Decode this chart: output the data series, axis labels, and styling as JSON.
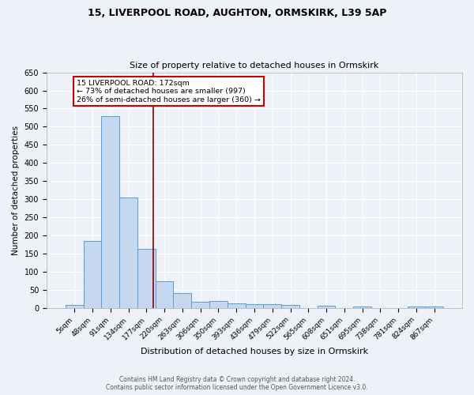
{
  "title1": "15, LIVERPOOL ROAD, AUGHTON, ORMSKIRK, L39 5AP",
  "title2": "Size of property relative to detached houses in Ormskirk",
  "xlabel": "Distribution of detached houses by size in Ormskirk",
  "ylabel": "Number of detached properties",
  "categories": [
    "5sqm",
    "48sqm",
    "91sqm",
    "134sqm",
    "177sqm",
    "220sqm",
    "263sqm",
    "306sqm",
    "350sqm",
    "393sqm",
    "436sqm",
    "479sqm",
    "522sqm",
    "565sqm",
    "608sqm",
    "651sqm",
    "695sqm",
    "738sqm",
    "781sqm",
    "824sqm",
    "867sqm"
  ],
  "values": [
    8,
    185,
    530,
    305,
    163,
    73,
    41,
    17,
    19,
    13,
    11,
    11,
    8,
    0,
    6,
    0,
    3,
    0,
    0,
    5,
    4
  ],
  "bar_color": "#c5d8f0",
  "bar_edge_color": "#5b9bd5",
  "reference_line_color": "#8b0000",
  "annotation_text1": "15 LIVERPOOL ROAD: 172sqm",
  "annotation_text2": "← 73% of detached houses are smaller (997)",
  "annotation_text3": "26% of semi-detached houses are larger (360) →",
  "annotation_box_color": "#ffffff",
  "annotation_border_color": "#cc0000",
  "ylim": [
    0,
    650
  ],
  "yticks": [
    0,
    50,
    100,
    150,
    200,
    250,
    300,
    350,
    400,
    450,
    500,
    550,
    600,
    650
  ],
  "footer1": "Contains HM Land Registry data © Crown copyright and database right 2024.",
  "footer2": "Contains public sector information licensed under the Open Government Licence v3.0.",
  "bg_color": "#eef2f8",
  "grid_color": "#ffffff"
}
